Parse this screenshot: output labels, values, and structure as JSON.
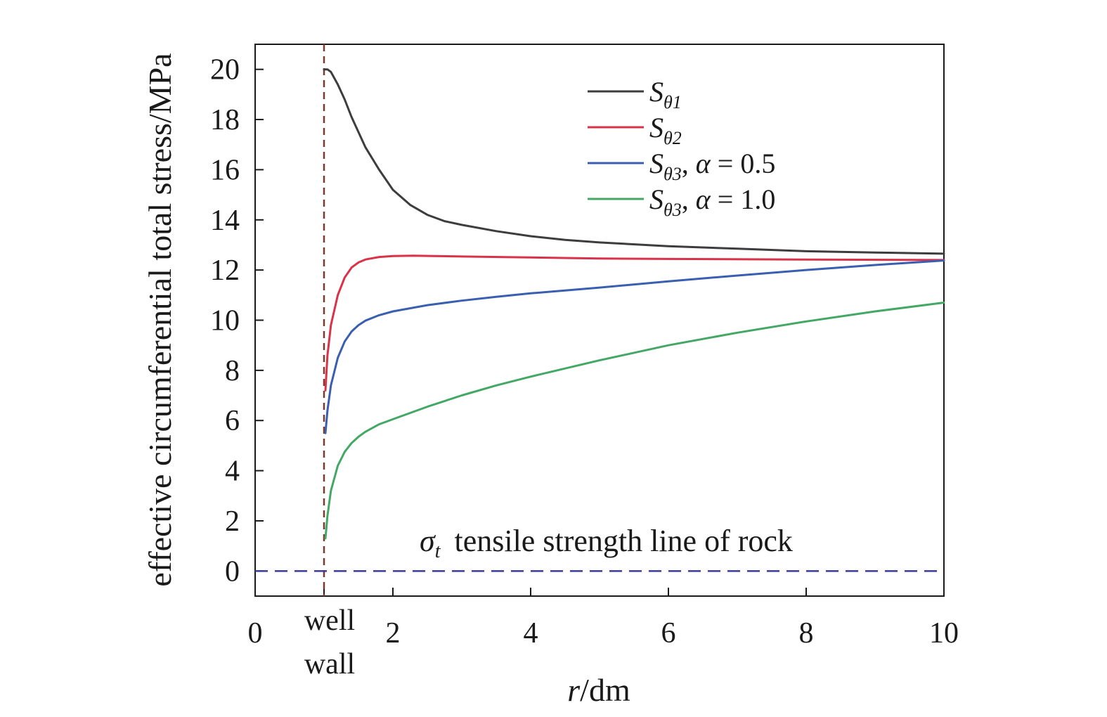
{
  "chart_data": {
    "type": "line",
    "xlabel": {
      "italic": "r",
      "rest": "/dm"
    },
    "ylabel": "effective circumferential total stress/MPa",
    "xlim": [
      0,
      10
    ],
    "ylim": [
      -1,
      21
    ],
    "xticks": [
      {
        "value": 0,
        "label": "0"
      },
      {
        "value": 2,
        "label": "2"
      },
      {
        "value": 4,
        "label": "4"
      },
      {
        "value": 6,
        "label": "6"
      },
      {
        "value": 8,
        "label": "8"
      },
      {
        "value": 10,
        "label": "10"
      }
    ],
    "well_wall": {
      "x": 1,
      "label_line1": "well",
      "label_line2": "wall",
      "color": "#7a3b2e"
    },
    "yticks": [
      0,
      2,
      4,
      6,
      8,
      10,
      12,
      14,
      16,
      18,
      20
    ],
    "tensile_line": {
      "y": 0,
      "color": "#3b3b9a",
      "symbol": "σ",
      "subscript": "t",
      "label": "tensile strength line of rock"
    },
    "legend_position": "top-right",
    "series": [
      {
        "name": "Sθ1",
        "legend": {
          "main": "S",
          "sub": "θ1",
          "tail": ""
        },
        "color": "#3d3d3d",
        "x": [
          1.0,
          1.05,
          1.1,
          1.2,
          1.3,
          1.4,
          1.5,
          1.6,
          1.8,
          2.0,
          2.25,
          2.5,
          2.75,
          3.0,
          3.5,
          4.0,
          4.5,
          5.0,
          6.0,
          7.0,
          8.0,
          9.0,
          10.0
        ],
        "y": [
          20.0,
          20.0,
          19.9,
          19.4,
          18.8,
          18.1,
          17.5,
          16.9,
          16.0,
          15.2,
          14.6,
          14.2,
          13.95,
          13.8,
          13.55,
          13.35,
          13.2,
          13.1,
          12.95,
          12.85,
          12.75,
          12.7,
          12.65
        ]
      },
      {
        "name": "Sθ2",
        "legend": {
          "main": "S",
          "sub": "θ2",
          "tail": ""
        },
        "color": "#d9334a",
        "x": [
          1.02,
          1.05,
          1.1,
          1.2,
          1.3,
          1.4,
          1.5,
          1.6,
          1.8,
          2.0,
          2.3,
          2.6,
          3.0,
          4.0,
          5.0,
          6.0,
          8.0,
          10.0
        ],
        "y": [
          7.2,
          8.6,
          9.8,
          11.0,
          11.7,
          12.1,
          12.3,
          12.42,
          12.52,
          12.56,
          12.57,
          12.56,
          12.54,
          12.5,
          12.46,
          12.44,
          12.42,
          12.4
        ]
      },
      {
        "name": "Sθ3, α = 0.5",
        "legend": {
          "main": "S",
          "sub": "θ3",
          "tail": ", α = 0.5"
        },
        "color": "#3a5fb0",
        "x": [
          1.02,
          1.05,
          1.1,
          1.2,
          1.3,
          1.4,
          1.5,
          1.6,
          1.8,
          2.0,
          2.5,
          3.0,
          3.5,
          4.0,
          5.0,
          6.0,
          7.0,
          8.0,
          9.0,
          10.0
        ],
        "y": [
          5.5,
          6.4,
          7.4,
          8.5,
          9.15,
          9.55,
          9.8,
          9.98,
          10.2,
          10.35,
          10.6,
          10.78,
          10.93,
          11.07,
          11.3,
          11.55,
          11.78,
          12.0,
          12.2,
          12.38
        ]
      },
      {
        "name": "Sθ3, α = 1.0",
        "legend": {
          "main": "S",
          "sub": "θ3",
          "tail": ", α = 1.0"
        },
        "color": "#44a865",
        "x": [
          1.02,
          1.05,
          1.1,
          1.2,
          1.3,
          1.4,
          1.5,
          1.6,
          1.8,
          2.0,
          2.5,
          3.0,
          3.5,
          4.0,
          5.0,
          6.0,
          7.0,
          8.0,
          9.0,
          10.0
        ],
        "y": [
          1.3,
          2.2,
          3.2,
          4.2,
          4.75,
          5.1,
          5.35,
          5.55,
          5.85,
          6.05,
          6.55,
          7.0,
          7.4,
          7.75,
          8.4,
          9.0,
          9.5,
          9.95,
          10.35,
          10.7
        ]
      }
    ]
  }
}
